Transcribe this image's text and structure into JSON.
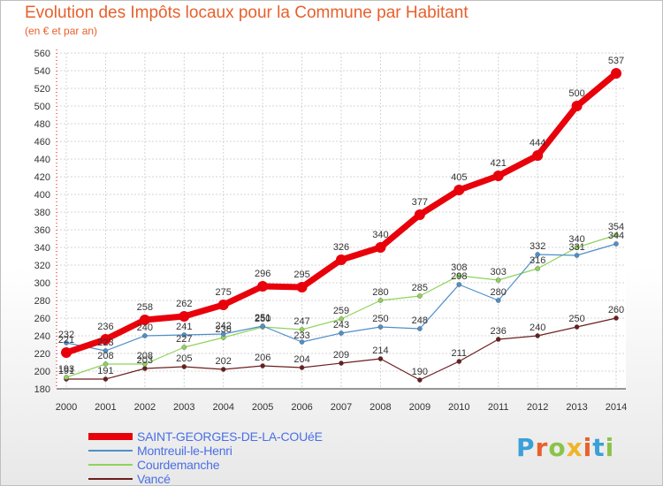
{
  "title": "Evolution des Impôts locaux pour la Commune par Habitant",
  "subtitle": "(en € et par an)",
  "brand": {
    "logo_text": "Proxiti",
    "letter_colors": [
      "#3aa0d8",
      "#e8602c",
      "#8bc34a",
      "#f0b429",
      "#e8602c",
      "#3aa0d8",
      "#8bc34a"
    ]
  },
  "chart_data": {
    "type": "line",
    "x": [
      2000,
      2001,
      2002,
      2003,
      2004,
      2005,
      2006,
      2007,
      2008,
      2009,
      2010,
      2011,
      2012,
      2013,
      2014
    ],
    "ylim": [
      180,
      560
    ],
    "yticks": [
      180,
      200,
      220,
      240,
      260,
      280,
      300,
      320,
      340,
      360,
      380,
      400,
      420,
      440,
      460,
      480,
      500,
      520,
      540,
      560
    ],
    "grid": true,
    "legend_position": "bottom-left",
    "series": [
      {
        "name": "SAINT-GEORGES-DE-LA-COUéE",
        "color": "#e8000b",
        "values": [
          221,
          236,
          258,
          262,
          275,
          296,
          295,
          326,
          340,
          377,
          405,
          421,
          444,
          500,
          537
        ]
      },
      {
        "name": "Montreuil-le-Henri",
        "color": "#4f8fc9",
        "values": [
          232,
          223,
          240,
          241,
          242,
          251,
          233,
          243,
          250,
          248,
          298,
          280,
          332,
          331,
          344
        ]
      },
      {
        "name": "Courdemanche",
        "color": "#8fd35a",
        "values": [
          193,
          208,
          208,
          227,
          238,
          250,
          247,
          259,
          280,
          285,
          308,
          303,
          316,
          340,
          354
        ]
      },
      {
        "name": "Vancé",
        "color": "#6b1e1e",
        "values": [
          191,
          191,
          203,
          205,
          202,
          206,
          204,
          209,
          214,
          190,
          211,
          236,
          240,
          250,
          260
        ]
      }
    ],
    "data_labels": [
      [
        "221",
        "",
        "258",
        "262",
        "275",
        "296",
        "295",
        "326",
        "340",
        "377",
        "405",
        "421",
        "444",
        "500",
        "537"
      ],
      [
        "232",
        "223",
        "240",
        "241",
        "242",
        "251",
        "",
        "243",
        "250",
        "248",
        "298",
        "280",
        "332",
        "331",
        "344"
      ],
      [
        "193",
        "208",
        "208",
        "227",
        "238",
        "250",
        "247",
        "259",
        "280",
        "285",
        "308",
        "303",
        "316",
        "340",
        "354"
      ],
      [
        "191",
        "191",
        "203",
        "205",
        "202",
        "206",
        "204",
        "209",
        "214",
        "190",
        "211",
        "236",
        "240",
        "250",
        "260"
      ]
    ],
    "extra_labels": [
      "236",
      "233"
    ]
  }
}
